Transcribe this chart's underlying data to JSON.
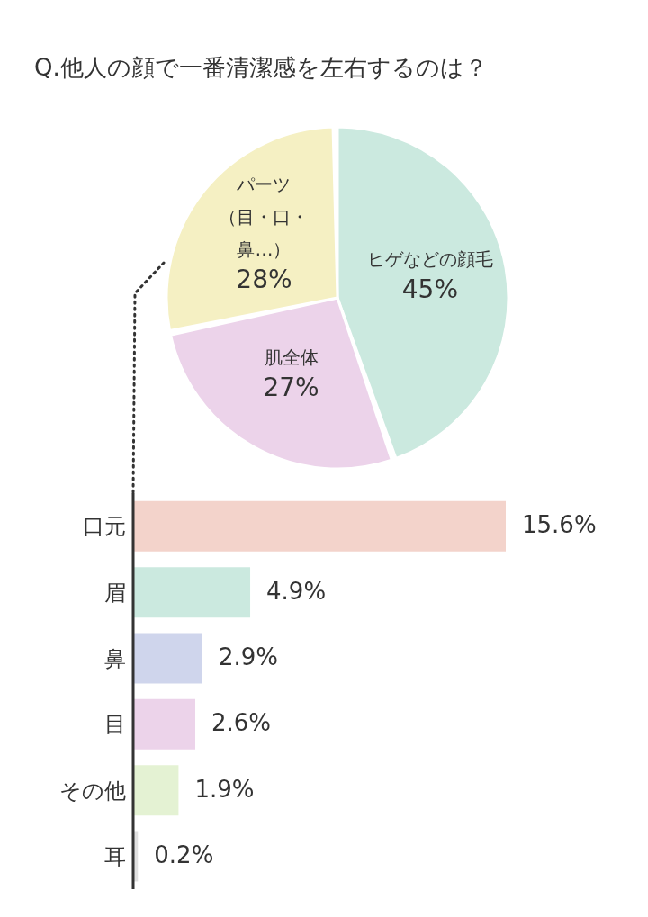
{
  "chart_data": [
    {
      "type": "pie",
      "title": "Q.他人の顔で一番清潔感を左右するのは？",
      "categories": [
        "ヒゲなどの顔毛",
        "肌全体",
        "パーツ（目・口・鼻…）"
      ],
      "values": [
        45,
        27,
        28
      ],
      "colors": [
        "#cbe9df",
        "#ecd3ea",
        "#f5f0c3"
      ],
      "value_labels": [
        "45%",
        "27%",
        "28%"
      ]
    },
    {
      "type": "bar",
      "orientation": "horizontal",
      "categories": [
        "口元",
        "眉",
        "鼻",
        "目",
        "その他",
        "耳"
      ],
      "values": [
        15.6,
        4.9,
        2.9,
        2.6,
        1.9,
        0.2
      ],
      "colors": [
        "#f3d3cb",
        "#cbe9df",
        "#cfd5ec",
        "#ecd3ea",
        "#e4f2d3",
        "#e0e0e0"
      ],
      "value_labels": [
        "15.6%",
        "4.9%",
        "2.9%",
        "2.6%",
        "1.9%",
        "0.2%"
      ]
    }
  ]
}
